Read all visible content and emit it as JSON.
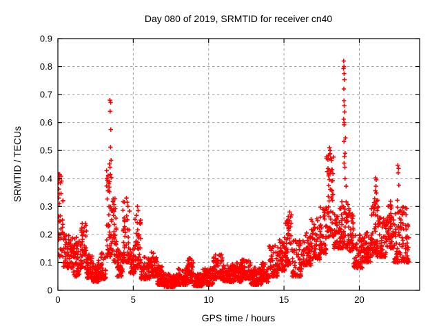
{
  "chart_data": {
    "type": "scatter",
    "title": "Day 080 of 2019, SRMTID for receiver cn40",
    "xlabel": "GPS time / hours",
    "ylabel": "SRMTID / TECUs",
    "xlim": [
      0,
      24
    ],
    "ylim": [
      0,
      0.9
    ],
    "grid": true,
    "legend": "none",
    "marker": "plus",
    "xticks": [
      {
        "value": 0,
        "label": "0"
      },
      {
        "value": 5,
        "label": "5"
      },
      {
        "value": 10,
        "label": "10"
      },
      {
        "value": 15,
        "label": "15"
      },
      {
        "value": 20,
        "label": "20"
      }
    ],
    "yticks": [
      {
        "value": 0.0,
        "label": "0"
      },
      {
        "value": 0.1,
        "label": "0.1"
      },
      {
        "value": 0.2,
        "label": "0.2"
      },
      {
        "value": 0.3,
        "label": "0.3"
      },
      {
        "value": 0.4,
        "label": "0.4"
      },
      {
        "value": 0.5,
        "label": "0.5"
      },
      {
        "value": 0.6,
        "label": "0.6"
      },
      {
        "value": 0.7,
        "label": "0.7"
      },
      {
        "value": 0.8,
        "label": "0.8"
      },
      {
        "value": 0.9,
        "label": "0.9"
      }
    ],
    "envelope_bins_comment": "dense scatter summarized as [t_start_h, t_end_h, y_min, y_max, n_points]; points are regenerated deterministically from these observed envelopes",
    "envelope_bins": [
      [
        0.0,
        0.05,
        0.18,
        0.25,
        8
      ],
      [
        0.05,
        0.35,
        0.12,
        0.42,
        30
      ],
      [
        0.35,
        1.0,
        0.08,
        0.2,
        60
      ],
      [
        1.0,
        1.5,
        0.05,
        0.2,
        55
      ],
      [
        1.5,
        1.9,
        0.08,
        0.24,
        45
      ],
      [
        1.9,
        2.3,
        0.04,
        0.13,
        50
      ],
      [
        2.3,
        2.7,
        0.03,
        0.1,
        50
      ],
      [
        2.7,
        3.2,
        0.04,
        0.14,
        55
      ],
      [
        3.2,
        3.6,
        0.12,
        0.43,
        55
      ],
      [
        3.6,
        3.9,
        0.1,
        0.33,
        35
      ],
      [
        3.9,
        4.3,
        0.05,
        0.15,
        45
      ],
      [
        4.3,
        4.8,
        0.1,
        0.32,
        50
      ],
      [
        4.8,
        5.1,
        0.06,
        0.15,
        35
      ],
      [
        5.1,
        5.5,
        0.08,
        0.29,
        45
      ],
      [
        5.5,
        6.1,
        0.04,
        0.12,
        65
      ],
      [
        6.1,
        6.6,
        0.05,
        0.14,
        55
      ],
      [
        6.6,
        7.0,
        0.02,
        0.09,
        55
      ],
      [
        7.0,
        7.8,
        0.012,
        0.06,
        85
      ],
      [
        7.8,
        8.6,
        0.02,
        0.08,
        85
      ],
      [
        8.6,
        9.0,
        0.03,
        0.12,
        55
      ],
      [
        9.0,
        9.6,
        0.015,
        0.06,
        70
      ],
      [
        9.6,
        10.3,
        0.02,
        0.08,
        75
      ],
      [
        10.3,
        10.9,
        0.04,
        0.13,
        65
      ],
      [
        10.9,
        11.5,
        0.03,
        0.09,
        65
      ],
      [
        11.5,
        12.2,
        0.03,
        0.1,
        75
      ],
      [
        12.2,
        12.8,
        0.04,
        0.11,
        65
      ],
      [
        12.8,
        13.5,
        0.02,
        0.09,
        75
      ],
      [
        13.5,
        14.0,
        0.03,
        0.1,
        55
      ],
      [
        14.0,
        14.6,
        0.05,
        0.16,
        55
      ],
      [
        14.6,
        15.1,
        0.07,
        0.19,
        50
      ],
      [
        15.1,
        15.5,
        0.09,
        0.27,
        45
      ],
      [
        15.5,
        16.2,
        0.05,
        0.18,
        60
      ],
      [
        16.2,
        16.8,
        0.09,
        0.21,
        55
      ],
      [
        16.8,
        17.4,
        0.11,
        0.26,
        55
      ],
      [
        17.4,
        17.8,
        0.13,
        0.3,
        45
      ],
      [
        17.8,
        18.3,
        0.19,
        0.5,
        55
      ],
      [
        18.3,
        18.7,
        0.15,
        0.27,
        45
      ],
      [
        18.7,
        19.3,
        0.15,
        0.32,
        60
      ],
      [
        19.3,
        19.6,
        0.14,
        0.3,
        40
      ],
      [
        19.6,
        20.2,
        0.08,
        0.2,
        60
      ],
      [
        20.2,
        20.8,
        0.1,
        0.22,
        60
      ],
      [
        20.8,
        21.3,
        0.12,
        0.33,
        55
      ],
      [
        21.3,
        21.8,
        0.12,
        0.26,
        50
      ],
      [
        21.8,
        22.3,
        0.15,
        0.32,
        55
      ],
      [
        22.3,
        22.9,
        0.1,
        0.3,
        60
      ],
      [
        22.9,
        23.3,
        0.1,
        0.3,
        40
      ]
    ],
    "peak_points": [
      [
        0.05,
        0.415
      ],
      [
        0.07,
        0.4
      ],
      [
        0.04,
        0.385
      ],
      [
        0.06,
        0.362
      ],
      [
        0.08,
        0.345
      ],
      [
        0.05,
        0.33
      ],
      [
        0.09,
        0.31
      ],
      [
        3.45,
        0.68
      ],
      [
        3.5,
        0.672
      ],
      [
        3.47,
        0.64
      ],
      [
        3.51,
        0.575
      ],
      [
        3.49,
        0.512
      ],
      [
        3.53,
        0.465
      ],
      [
        3.42,
        0.452
      ],
      [
        3.46,
        0.44
      ],
      [
        4.55,
        0.33
      ],
      [
        4.6,
        0.315
      ],
      [
        4.65,
        0.3
      ],
      [
        5.28,
        0.3
      ],
      [
        5.32,
        0.285
      ],
      [
        15.38,
        0.28
      ],
      [
        15.44,
        0.262
      ],
      [
        18.02,
        0.51
      ],
      [
        18.06,
        0.5
      ],
      [
        18.04,
        0.487
      ],
      [
        18.1,
        0.472
      ],
      [
        18.96,
        0.82
      ],
      [
        18.98,
        0.8
      ],
      [
        18.95,
        0.793
      ],
      [
        18.99,
        0.775
      ],
      [
        19.01,
        0.753
      ],
      [
        18.97,
        0.72
      ],
      [
        18.98,
        0.678
      ],
      [
        19.0,
        0.66
      ],
      [
        19.02,
        0.638
      ],
      [
        18.96,
        0.612
      ],
      [
        19.0,
        0.6
      ],
      [
        18.99,
        0.592
      ],
      [
        19.08,
        0.545
      ],
      [
        18.98,
        0.532
      ],
      [
        19.06,
        0.49
      ],
      [
        19.01,
        0.478
      ],
      [
        18.99,
        0.455
      ],
      [
        19.04,
        0.44
      ],
      [
        19.05,
        0.4
      ],
      [
        19.12,
        0.372
      ],
      [
        21.08,
        0.402
      ],
      [
        21.12,
        0.395
      ],
      [
        21.1,
        0.372
      ],
      [
        21.06,
        0.356
      ],
      [
        21.13,
        0.348
      ],
      [
        22.55,
        0.447
      ],
      [
        22.6,
        0.436
      ],
      [
        22.58,
        0.42
      ],
      [
        22.62,
        0.376
      ],
      [
        22.52,
        0.322
      ],
      [
        23.05,
        0.295
      ],
      [
        23.1,
        0.27
      ]
    ],
    "colors": {
      "marker": "#ff0000",
      "grid": "#9e9e9e",
      "axis": "#000000",
      "background": "#ffffff",
      "text": "#000000"
    }
  }
}
